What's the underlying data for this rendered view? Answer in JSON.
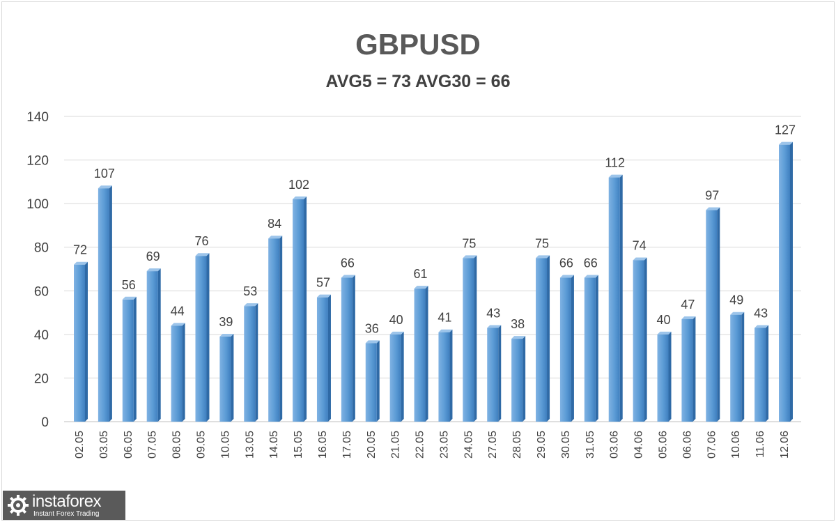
{
  "chart_data": {
    "type": "bar",
    "title": "GBPUSD",
    "subtitle": "AVG5 = 73 AVG30 = 66",
    "xlabel": "",
    "ylabel": "",
    "ylim": [
      0,
      140
    ],
    "yticks": [
      "0",
      "20",
      "40",
      "60",
      "80",
      "100",
      "120",
      "140"
    ],
    "grid": true,
    "legend": "none",
    "bar_color": "#5b9bd5",
    "categories": [
      "02.05",
      "03.05",
      "06.05",
      "07.05",
      "08.05",
      "09.05",
      "10.05",
      "13.05",
      "14.05",
      "15.05",
      "16.05",
      "17.05",
      "20.05",
      "21.05",
      "22.05",
      "23.05",
      "24.05",
      "27.05",
      "28.05",
      "29.05",
      "30.05",
      "31.05",
      "03.06",
      "04.06",
      "05.06",
      "06.06",
      "07.06",
      "10.06",
      "11.06",
      "12.06"
    ],
    "values": [
      72,
      107,
      56,
      69,
      44,
      76,
      39,
      53,
      84,
      102,
      57,
      66,
      36,
      40,
      61,
      41,
      75,
      43,
      38,
      75,
      66,
      66,
      112,
      74,
      40,
      47,
      97,
      49,
      43,
      127
    ]
  },
  "watermark": {
    "brand": "instaforex",
    "tagline": "Instant Forex Trading",
    "icon": "gear-icon"
  }
}
